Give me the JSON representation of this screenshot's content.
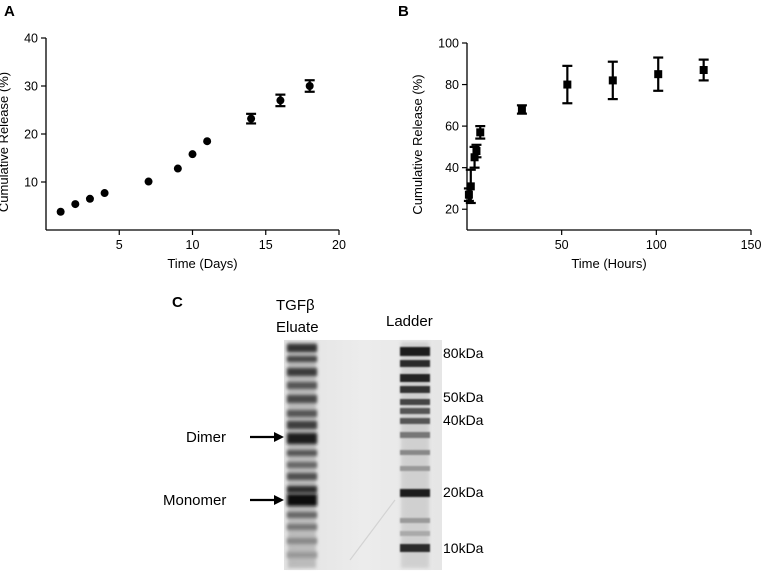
{
  "chart_data": [
    {
      "panel": "A",
      "type": "scatter",
      "xlabel": "Time (Days)",
      "ylabel": "Cumulative Release (%)",
      "xlim": [
        0,
        20
      ],
      "ylim": [
        0,
        40
      ],
      "xticks": [
        5,
        10,
        15,
        20
      ],
      "yticks": [
        10,
        20,
        30,
        40
      ],
      "marker": "circle",
      "points": [
        {
          "x": 1,
          "y": 3.8,
          "err": 0
        },
        {
          "x": 2,
          "y": 5.4,
          "err": 0
        },
        {
          "x": 3,
          "y": 6.5,
          "err": 0
        },
        {
          "x": 4,
          "y": 7.7,
          "err": 0
        },
        {
          "x": 7,
          "y": 10.1,
          "err": 0
        },
        {
          "x": 9,
          "y": 12.8,
          "err": 0
        },
        {
          "x": 10,
          "y": 15.8,
          "err": 0
        },
        {
          "x": 11,
          "y": 18.5,
          "err": 0
        },
        {
          "x": 14,
          "y": 23.2,
          "err": 1.0
        },
        {
          "x": 16,
          "y": 27.0,
          "err": 1.2
        },
        {
          "x": 18,
          "y": 30.0,
          "err": 1.2
        }
      ]
    },
    {
      "panel": "B",
      "type": "scatter",
      "xlabel": "Time (Hours)",
      "ylabel": "Cumulative Release (%)",
      "xlim": [
        0,
        150
      ],
      "ylim": [
        10,
        100
      ],
      "xticks": [
        50,
        100,
        150
      ],
      "yticks": [
        20,
        40,
        60,
        80,
        100
      ],
      "marker": "square",
      "points": [
        {
          "x": 1,
          "y": 27,
          "err": 3
        },
        {
          "x": 2,
          "y": 31,
          "err": 8
        },
        {
          "x": 4,
          "y": 45,
          "err": 5
        },
        {
          "x": 5,
          "y": 48,
          "err": 3
        },
        {
          "x": 7,
          "y": 57,
          "err": 3
        },
        {
          "x": 29,
          "y": 68,
          "err": 2
        },
        {
          "x": 53,
          "y": 80,
          "err": 9
        },
        {
          "x": 77,
          "y": 82,
          "err": 9
        },
        {
          "x": 101,
          "y": 85,
          "err": 8
        },
        {
          "x": 125,
          "y": 87,
          "err": 5
        }
      ]
    }
  ],
  "gel": {
    "panel": "C",
    "lane_titles": [
      "TGFβ",
      "Eluate",
      "Ladder"
    ],
    "arrow_labels": [
      "Dimer",
      "Monomer"
    ],
    "ladder_markers": [
      "80kDa",
      "50kDa",
      "40kDa",
      "20kDa",
      "10kDa"
    ]
  }
}
